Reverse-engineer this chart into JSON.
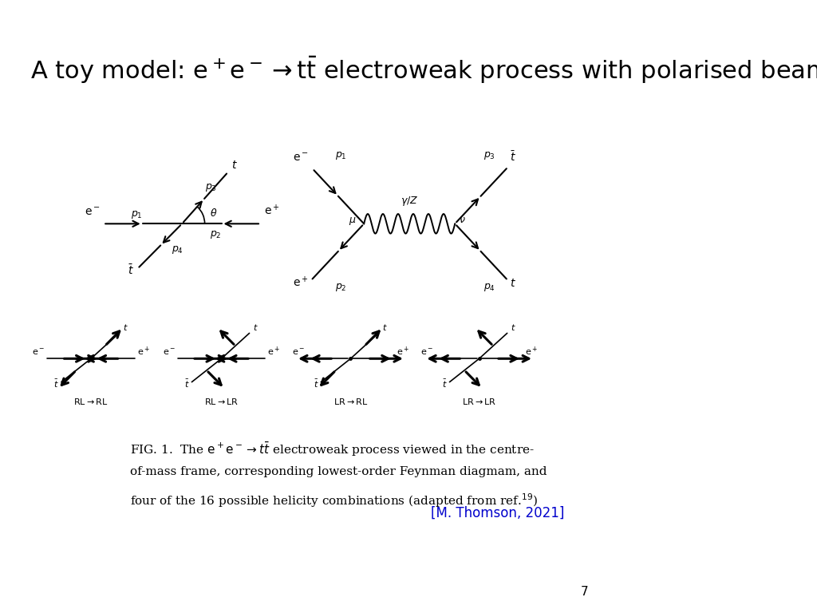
{
  "title": "A toy model: $e^+e^- \\rightarrow t\\bar{t}$ electroweak process with polarised beams",
  "background_color": "#ffffff",
  "text_color": "#000000",
  "link_color": "#0000cc",
  "page_number": "7",
  "reference": "[M. Thomson, 2021]",
  "title_fontsize": 22,
  "caption_fontsize": 11,
  "ref_fontsize": 12
}
